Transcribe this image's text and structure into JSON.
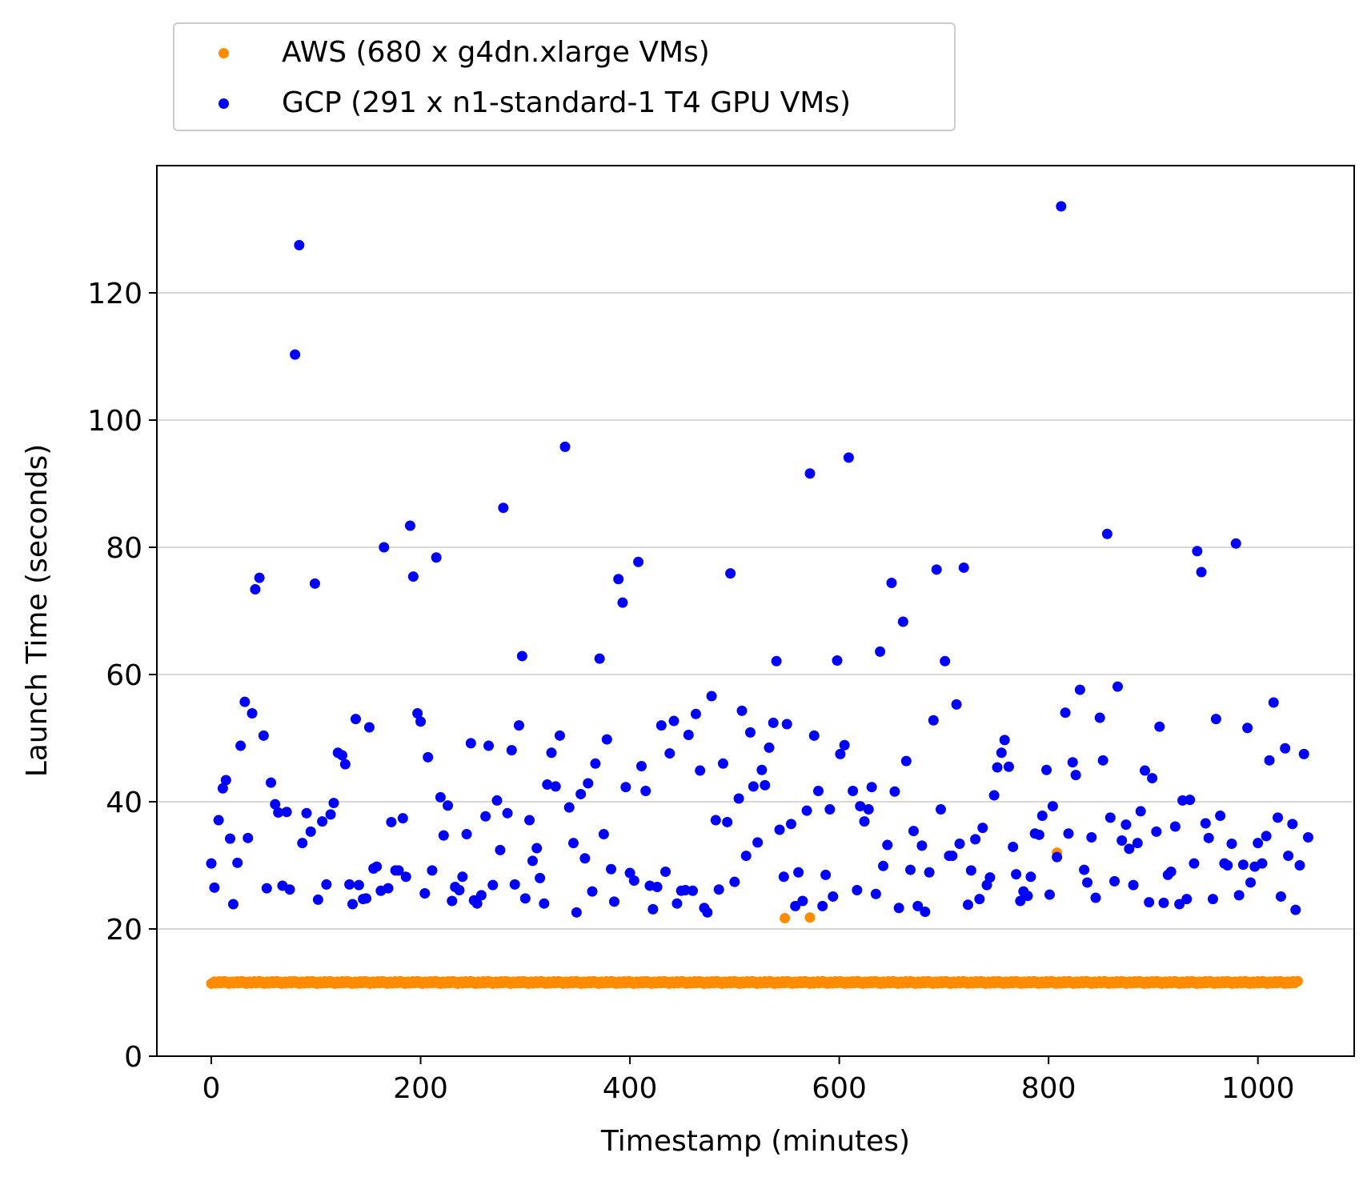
{
  "chart_data": {
    "type": "scatter",
    "xlabel": "Timestamp (minutes)",
    "ylabel": "Launch Time (seconds)",
    "xlim": [
      -52,
      1092
    ],
    "ylim": [
      0,
      140
    ],
    "xticks": [
      0,
      200,
      400,
      600,
      800,
      1000
    ],
    "yticks": [
      0,
      20,
      40,
      60,
      80,
      100,
      120
    ],
    "grid": "horizontal",
    "legend_position": "top-left, above plot",
    "series": [
      {
        "name": "AWS (680 x g4dn.xlarge VMs)",
        "color": "#ff8c00",
        "baseline_y": 11.6,
        "baseline_x_range": [
          0,
          1038
        ],
        "outliers": [
          {
            "x": 548,
            "y": 21.7
          },
          {
            "x": 572,
            "y": 21.8
          },
          {
            "x": 808,
            "y": 32.0
          }
        ]
      },
      {
        "name": "GCP (291 x n1-standard-1 T4 GPU VMs)",
        "color": "#0000ff",
        "points": [
          [
            0,
            30.3
          ],
          [
            3,
            26.5
          ],
          [
            7,
            37.1
          ],
          [
            11,
            42.1
          ],
          [
            14,
            43.4
          ],
          [
            18,
            34.2
          ],
          [
            21,
            23.9
          ],
          [
            25,
            30.4
          ],
          [
            28,
            48.8
          ],
          [
            32,
            55.7
          ],
          [
            35,
            34.3
          ],
          [
            39,
            53.9
          ],
          [
            42,
            73.4
          ],
          [
            46,
            75.2
          ],
          [
            50,
            50.4
          ],
          [
            53,
            26.4
          ],
          [
            57,
            43.0
          ],
          [
            61,
            39.6
          ],
          [
            64,
            38.3
          ],
          [
            68,
            26.8
          ],
          [
            72,
            38.4
          ],
          [
            75,
            26.2
          ],
          [
            80,
            110.3
          ],
          [
            84,
            127.5
          ],
          [
            87,
            33.5
          ],
          [
            91,
            38.2
          ],
          [
            95,
            35.3
          ],
          [
            99,
            74.3
          ],
          [
            102,
            24.6
          ],
          [
            106,
            36.9
          ],
          [
            110,
            27.0
          ],
          [
            114,
            38.0
          ],
          [
            117,
            39.8
          ],
          [
            121,
            47.7
          ],
          [
            125,
            47.3
          ],
          [
            128,
            45.9
          ],
          [
            132,
            27.0
          ],
          [
            135,
            23.9
          ],
          [
            138,
            53.0
          ],
          [
            141,
            26.9
          ],
          [
            145,
            24.7
          ],
          [
            148,
            24.8
          ],
          [
            151,
            51.7
          ],
          [
            155,
            29.5
          ],
          [
            158,
            29.8
          ],
          [
            162,
            26.0
          ],
          [
            165,
            80.0
          ],
          [
            169,
            26.4
          ],
          [
            172,
            36.8
          ],
          [
            176,
            29.2
          ],
          [
            179,
            29.2
          ],
          [
            183,
            37.4
          ],
          [
            186,
            28.2
          ],
          [
            190,
            83.4
          ],
          [
            193,
            75.4
          ],
          [
            197,
            53.9
          ],
          [
            200,
            52.6
          ],
          [
            204,
            25.6
          ],
          [
            207,
            47.0
          ],
          [
            211,
            29.2
          ],
          [
            215,
            78.4
          ],
          [
            219,
            40.7
          ],
          [
            222,
            34.7
          ],
          [
            226,
            39.4
          ],
          [
            230,
            24.4
          ],
          [
            233,
            26.6
          ],
          [
            237,
            26.1
          ],
          [
            240,
            28.2
          ],
          [
            244,
            34.9
          ],
          [
            248,
            49.2
          ],
          [
            251,
            24.5
          ],
          [
            254,
            24.0
          ],
          [
            258,
            25.3
          ],
          [
            262,
            37.7
          ],
          [
            265,
            48.8
          ],
          [
            269,
            26.9
          ],
          [
            273,
            40.2
          ],
          [
            276,
            32.4
          ],
          [
            279,
            86.2
          ],
          [
            283,
            38.2
          ],
          [
            287,
            48.1
          ],
          [
            290,
            27.0
          ],
          [
            294,
            52.0
          ],
          [
            297,
            62.9
          ],
          [
            300,
            24.8
          ],
          [
            304,
            37.1
          ],
          [
            307,
            30.7
          ],
          [
            311,
            32.7
          ],
          [
            314,
            28.0
          ],
          [
            318,
            24.0
          ],
          [
            321,
            42.7
          ],
          [
            325,
            47.7
          ],
          [
            329,
            42.4
          ],
          [
            333,
            50.4
          ],
          [
            338,
            95.8
          ],
          [
            342,
            39.1
          ],
          [
            346,
            33.5
          ],
          [
            349,
            22.6
          ],
          [
            353,
            41.2
          ],
          [
            357,
            31.1
          ],
          [
            360,
            42.9
          ],
          [
            364,
            25.9
          ],
          [
            367,
            46.0
          ],
          [
            371,
            62.5
          ],
          [
            375,
            34.9
          ],
          [
            378,
            49.8
          ],
          [
            382,
            29.4
          ],
          [
            385,
            24.3
          ],
          [
            389,
            75.0
          ],
          [
            393,
            71.3
          ],
          [
            396,
            42.3
          ],
          [
            400,
            28.8
          ],
          [
            404,
            27.6
          ],
          [
            408,
            77.7
          ],
          [
            411,
            45.6
          ],
          [
            415,
            41.7
          ],
          [
            419,
            26.8
          ],
          [
            422,
            23.1
          ],
          [
            426,
            26.6
          ],
          [
            430,
            52.0
          ],
          [
            434,
            29.0
          ],
          [
            438,
            47.6
          ],
          [
            442,
            52.7
          ],
          [
            445,
            24.0
          ],
          [
            449,
            26.0
          ],
          [
            453,
            26.1
          ],
          [
            456,
            50.5
          ],
          [
            460,
            26.0
          ],
          [
            463,
            53.8
          ],
          [
            467,
            44.9
          ],
          [
            471,
            23.3
          ],
          [
            474,
            22.6
          ],
          [
            478,
            56.6
          ],
          [
            482,
            37.1
          ],
          [
            485,
            26.2
          ],
          [
            489,
            46.0
          ],
          [
            493,
            36.8
          ],
          [
            496,
            75.9
          ],
          [
            500,
            27.4
          ],
          [
            504,
            40.5
          ],
          [
            507,
            54.3
          ],
          [
            511,
            31.5
          ],
          [
            515,
            50.9
          ],
          [
            518,
            42.4
          ],
          [
            522,
            33.6
          ],
          [
            526,
            45.0
          ],
          [
            529,
            42.6
          ],
          [
            533,
            48.5
          ],
          [
            537,
            52.4
          ],
          [
            540,
            62.1
          ],
          [
            543,
            35.6
          ],
          [
            547,
            28.2
          ],
          [
            550,
            52.2
          ],
          [
            554,
            36.5
          ],
          [
            558,
            23.6
          ],
          [
            561,
            28.9
          ],
          [
            565,
            24.4
          ],
          [
            569,
            38.6
          ],
          [
            572,
            91.6
          ],
          [
            576,
            50.4
          ],
          [
            580,
            41.7
          ],
          [
            584,
            23.6
          ],
          [
            587,
            28.5
          ],
          [
            591,
            38.8
          ],
          [
            594,
            25.1
          ],
          [
            598,
            62.2
          ],
          [
            601,
            47.5
          ],
          [
            605,
            48.9
          ],
          [
            609,
            94.1
          ],
          [
            613,
            41.7
          ],
          [
            617,
            26.1
          ],
          [
            620,
            39.3
          ],
          [
            624,
            36.9
          ],
          [
            628,
            38.8
          ],
          [
            631,
            42.3
          ],
          [
            635,
            25.5
          ],
          [
            639,
            63.6
          ],
          [
            642,
            29.9
          ],
          [
            646,
            33.2
          ],
          [
            650,
            74.4
          ],
          [
            653,
            41.6
          ],
          [
            657,
            23.3
          ],
          [
            661,
            68.3
          ],
          [
            664,
            46.4
          ],
          [
            668,
            29.3
          ],
          [
            671,
            35.4
          ],
          [
            675,
            23.6
          ],
          [
            679,
            33.1
          ],
          [
            682,
            22.7
          ],
          [
            686,
            28.9
          ],
          [
            690,
            52.8
          ],
          [
            693,
            76.5
          ],
          [
            697,
            38.8
          ],
          [
            701,
            62.1
          ],
          [
            705,
            31.5
          ],
          [
            708,
            31.5
          ],
          [
            712,
            55.3
          ],
          [
            715,
            33.4
          ],
          [
            719,
            76.8
          ],
          [
            723,
            23.8
          ],
          [
            726,
            29.2
          ],
          [
            730,
            34.1
          ],
          [
            734,
            24.7
          ],
          [
            737,
            35.9
          ],
          [
            741,
            26.9
          ],
          [
            744,
            28.1
          ],
          [
            748,
            41.0
          ],
          [
            751,
            45.4
          ],
          [
            755,
            47.7
          ],
          [
            758,
            49.7
          ],
          [
            762,
            45.5
          ],
          [
            766,
            32.9
          ],
          [
            769,
            28.6
          ],
          [
            773,
            24.4
          ],
          [
            776,
            25.9
          ],
          [
            780,
            25.2
          ],
          [
            783,
            28.2
          ],
          [
            787,
            35.0
          ],
          [
            791,
            34.8
          ],
          [
            794,
            37.8
          ],
          [
            798,
            45.0
          ],
          [
            801,
            25.4
          ],
          [
            804,
            39.3
          ],
          [
            808,
            31.3
          ],
          [
            812,
            133.6
          ],
          [
            816,
            54.0
          ],
          [
            819,
            35.0
          ],
          [
            823,
            46.2
          ],
          [
            826,
            44.2
          ],
          [
            830,
            57.6
          ],
          [
            834,
            29.3
          ],
          [
            837,
            27.3
          ],
          [
            841,
            34.4
          ],
          [
            845,
            24.9
          ],
          [
            849,
            53.2
          ],
          [
            852,
            46.5
          ],
          [
            856,
            82.1
          ],
          [
            859,
            37.5
          ],
          [
            863,
            27.5
          ],
          [
            866,
            58.1
          ],
          [
            870,
            33.9
          ],
          [
            874,
            36.4
          ],
          [
            877,
            32.6
          ],
          [
            881,
            26.9
          ],
          [
            885,
            33.5
          ],
          [
            888,
            38.5
          ],
          [
            892,
            44.9
          ],
          [
            896,
            24.2
          ],
          [
            899,
            43.7
          ],
          [
            903,
            35.3
          ],
          [
            906,
            51.8
          ],
          [
            910,
            24.1
          ],
          [
            914,
            28.5
          ],
          [
            917,
            29.0
          ],
          [
            921,
            36.1
          ],
          [
            925,
            23.9
          ],
          [
            928,
            40.2
          ],
          [
            932,
            24.7
          ],
          [
            935,
            40.3
          ],
          [
            939,
            30.3
          ],
          [
            942,
            79.4
          ],
          [
            946,
            76.1
          ],
          [
            950,
            36.6
          ],
          [
            953,
            34.3
          ],
          [
            957,
            24.7
          ],
          [
            960,
            53.0
          ],
          [
            964,
            37.8
          ],
          [
            968,
            30.3
          ],
          [
            971,
            30.0
          ],
          [
            975,
            33.4
          ],
          [
            979,
            80.6
          ],
          [
            982,
            25.3
          ],
          [
            986,
            30.1
          ],
          [
            990,
            51.6
          ],
          [
            993,
            27.3
          ],
          [
            997,
            29.8
          ],
          [
            1000,
            33.5
          ],
          [
            1004,
            30.3
          ],
          [
            1008,
            34.6
          ],
          [
            1011,
            46.5
          ],
          [
            1015,
            55.6
          ],
          [
            1019,
            37.5
          ],
          [
            1022,
            25.1
          ],
          [
            1026,
            48.4
          ],
          [
            1029,
            31.5
          ],
          [
            1033,
            36.5
          ],
          [
            1036,
            23.0
          ],
          [
            1040,
            30.0
          ],
          [
            1044,
            47.5
          ],
          [
            1048,
            34.4
          ]
        ]
      }
    ]
  }
}
